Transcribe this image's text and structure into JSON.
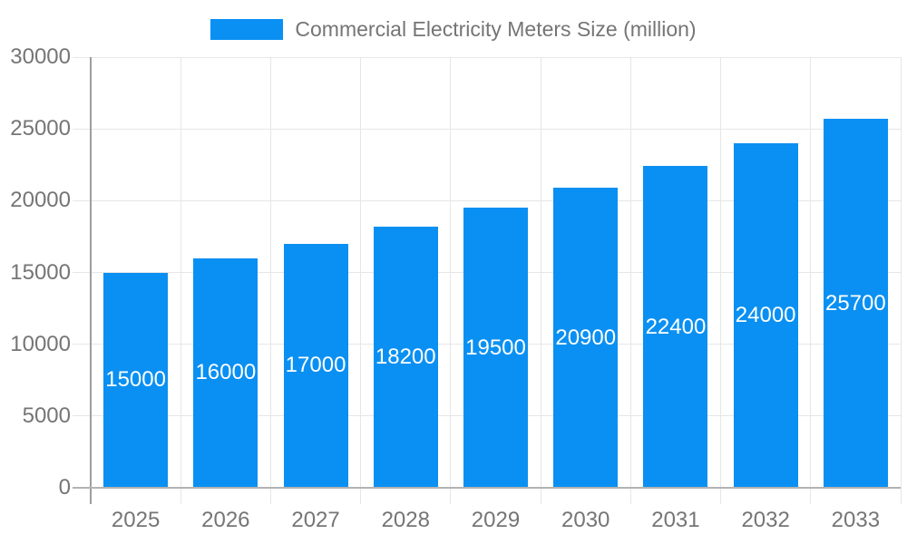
{
  "chart_data": {
    "type": "bar",
    "title": "",
    "legend": "Commercial Electricity Meters Size (million)",
    "legend_position": "top-center",
    "categories": [
      "2025",
      "2026",
      "2027",
      "2028",
      "2029",
      "2030",
      "2031",
      "2032",
      "2033"
    ],
    "values": [
      15000,
      16000,
      17000,
      18200,
      19500,
      20900,
      22400,
      24000,
      25700
    ],
    "xlabel": "",
    "ylabel": "",
    "ylim": [
      0,
      30000
    ],
    "yticks": [
      0,
      5000,
      10000,
      15000,
      20000,
      25000,
      30000
    ],
    "grid": "horizontal and vertical light gridlines",
    "value_labels": "white numbers centered inside each bar",
    "colors": {
      "bar": "#0a90f2",
      "axis_text": "#757575",
      "legend_text": "#757575",
      "value_text": "#ffffff",
      "grid_line": "#e6e6e6",
      "y_axis_line": "#9e9e9e",
      "x_axis_line": "#b3b3b3",
      "background": "#ffffff"
    }
  }
}
